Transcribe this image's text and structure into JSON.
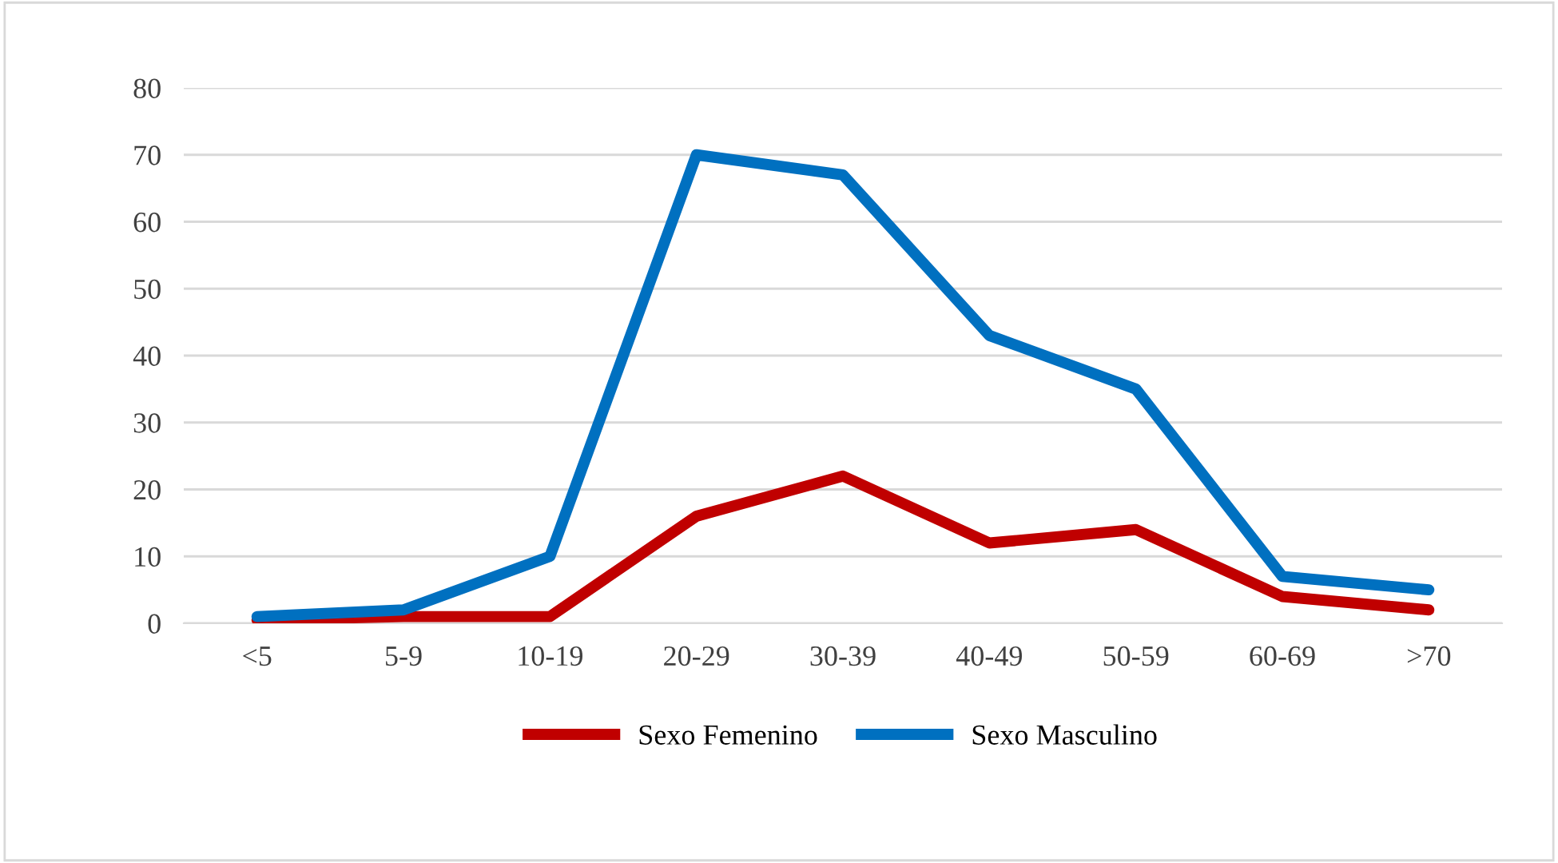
{
  "chart_data": {
    "type": "line",
    "categories": [
      "<5",
      "5-9",
      "10-19",
      "20-29",
      "30-39",
      "40-49",
      "50-59",
      "60-69",
      ">70"
    ],
    "series": [
      {
        "name": "Sexo Femenino",
        "color": "#c00000",
        "values": [
          0.5,
          1,
          1,
          16,
          22,
          12,
          14,
          4,
          2
        ]
      },
      {
        "name": "Sexo Masculino",
        "color": "#0070c0",
        "values": [
          1,
          2,
          10,
          70,
          67,
          43,
          35,
          7,
          5
        ]
      }
    ],
    "ylim": [
      0,
      80
    ],
    "yticks": [
      0,
      10,
      20,
      30,
      40,
      50,
      60,
      70,
      80
    ],
    "grid": "y",
    "legend": "bottom",
    "marker": "none",
    "line_style": "solid"
  }
}
